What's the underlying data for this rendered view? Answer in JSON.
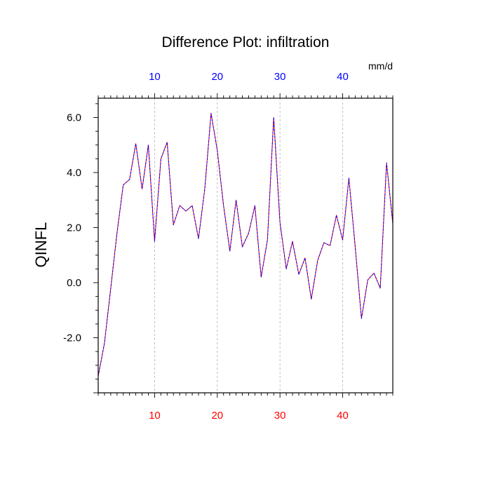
{
  "chart_data": {
    "type": "line",
    "title": "Difference Plot: infiltration",
    "ylabel": "QINFL",
    "units": "mm/d",
    "xlim": [
      1,
      48
    ],
    "ylim": [
      -4.0,
      6.7
    ],
    "x_ticks": [
      10,
      20,
      30,
      40
    ],
    "x_tick_labels": [
      "10",
      "20",
      "30",
      "40"
    ],
    "y_ticks": [
      -2.0,
      0.0,
      2.0,
      4.0,
      6.0
    ],
    "y_tick_labels": [
      "-2.0",
      "0.0",
      "2.0",
      "4.0",
      "6.0"
    ],
    "grid": "vertical dashed at major x ticks",
    "colors": {
      "top_tick_labels": "#0000ff",
      "bottom_tick_labels": "#ff0000",
      "line_primary": "#ff0000",
      "line_overlay": "#0000ff"
    },
    "series": [
      {
        "x": [
          1,
          2,
          3,
          4,
          5,
          6,
          7,
          8,
          9,
          10,
          11,
          12,
          13,
          14,
          15,
          16,
          17,
          18,
          19,
          20,
          21,
          22,
          23,
          24,
          25,
          26,
          27,
          28,
          29,
          30,
          31,
          32,
          33,
          34,
          35,
          36,
          37,
          38,
          39,
          40,
          41,
          42,
          43,
          44,
          45,
          46,
          47,
          48
        ],
        "values": [
          -3.4,
          -2.2,
          -0.2,
          1.8,
          3.55,
          3.75,
          5.05,
          3.4,
          5.0,
          1.5,
          4.5,
          5.1,
          2.1,
          2.8,
          2.6,
          2.8,
          1.6,
          3.4,
          6.15,
          4.8,
          2.8,
          1.15,
          3.0,
          1.3,
          1.8,
          2.8,
          0.2,
          1.55,
          6.0,
          2.2,
          0.5,
          1.5,
          0.3,
          0.9,
          -0.6,
          0.8,
          1.45,
          1.35,
          2.45,
          1.55,
          3.8,
          1.3,
          -1.3,
          0.1,
          0.35,
          -0.2,
          4.35,
          2.15
        ]
      }
    ]
  }
}
